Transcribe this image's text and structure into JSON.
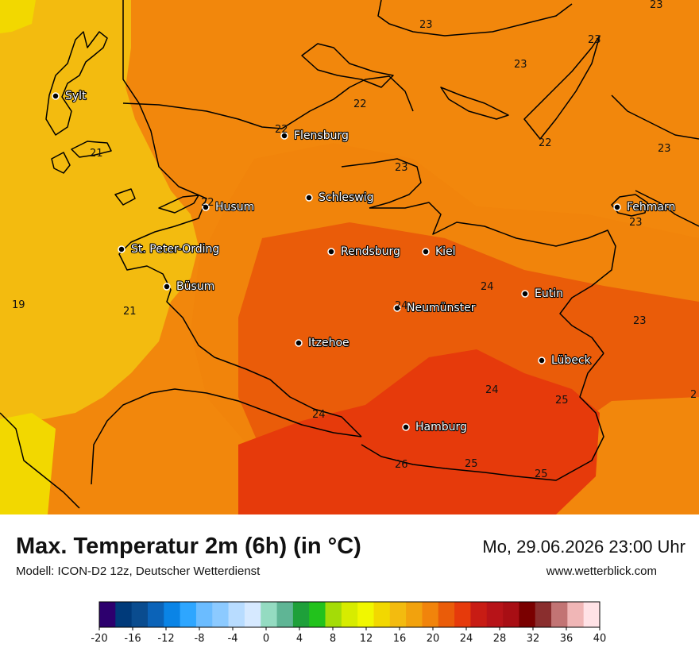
{
  "header": {
    "title": "Max. Temperatur 2m (6h) (in °C)",
    "model": "Modell: ICON-D2 12z, Deutscher Wetterdienst",
    "datetime": "Mo, 29.06.2026 23:00 Uhr",
    "website": "www.wetterblick.com"
  },
  "cities": [
    {
      "name": "Sylt"
    },
    {
      "name": "Flensburg"
    },
    {
      "name": "Husum"
    },
    {
      "name": "Schleswig"
    },
    {
      "name": "Fehmarn"
    },
    {
      "name": "St. Peter-Ording"
    },
    {
      "name": "Rendsburg"
    },
    {
      "name": "Kiel"
    },
    {
      "name": "Büsum"
    },
    {
      "name": "Eutin"
    },
    {
      "name": "Neumünster"
    },
    {
      "name": "Itzehoe"
    },
    {
      "name": "Lübeck"
    },
    {
      "name": "Hamburg"
    }
  ],
  "isotherm_labels": [
    "23",
    "23",
    "23",
    "23",
    "22",
    "22",
    "22",
    "23",
    "21",
    "22",
    "23",
    "23",
    "24",
    "19",
    "21",
    "24",
    "23",
    "24",
    "25",
    "24",
    "26",
    "25",
    "25",
    "2"
  ],
  "legend": {
    "ticks": [
      "-20",
      "-16",
      "-12",
      "-8",
      "-4",
      "0",
      "4",
      "8",
      "12",
      "16",
      "20",
      "24",
      "28",
      "32",
      "36",
      "40"
    ],
    "colors": [
      "#2d006e",
      "#003a7a",
      "#0a4c8f",
      "#0b63b8",
      "#0a84e6",
      "#2ea6ff",
      "#6bbcff",
      "#8ccaff",
      "#b8dcff",
      "#d6e9ff",
      "#94dbc1",
      "#5fb595",
      "#1ea03a",
      "#22c21c",
      "#a4dc07",
      "#d7ec00",
      "#f1f700",
      "#f2d800",
      "#f3bb0f",
      "#f2a20d",
      "#f1840b",
      "#ea5c09",
      "#e63a0b",
      "#c81c14",
      "#b71318",
      "#a80e14",
      "#7a0000",
      "#8a2e2e",
      "#c27474",
      "#f0b6b6",
      "#ffe2e6"
    ]
  }
}
